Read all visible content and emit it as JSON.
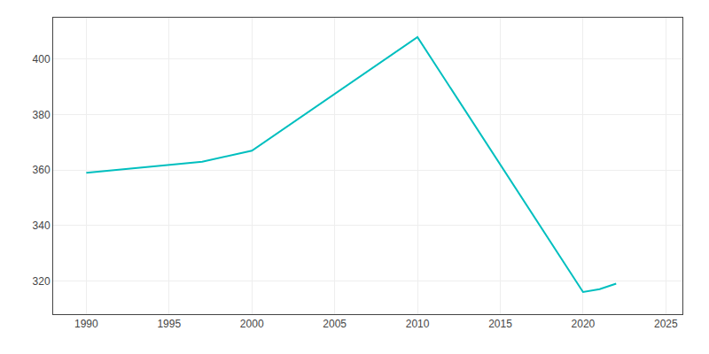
{
  "chart_data": {
    "type": "line",
    "x": [
      1990,
      1997,
      2000,
      2010,
      2020,
      2021,
      2022
    ],
    "values": [
      359,
      363,
      367,
      408,
      316,
      317,
      319
    ],
    "color": "#00BFBF",
    "xlim": [
      1988,
      2026
    ],
    "xticks": [
      1990,
      1995,
      2000,
      2005,
      2010,
      2015,
      2020,
      2025
    ],
    "ylim": [
      308,
      415
    ],
    "yticks": [
      320,
      340,
      360,
      380,
      400
    ],
    "grid": true
  }
}
